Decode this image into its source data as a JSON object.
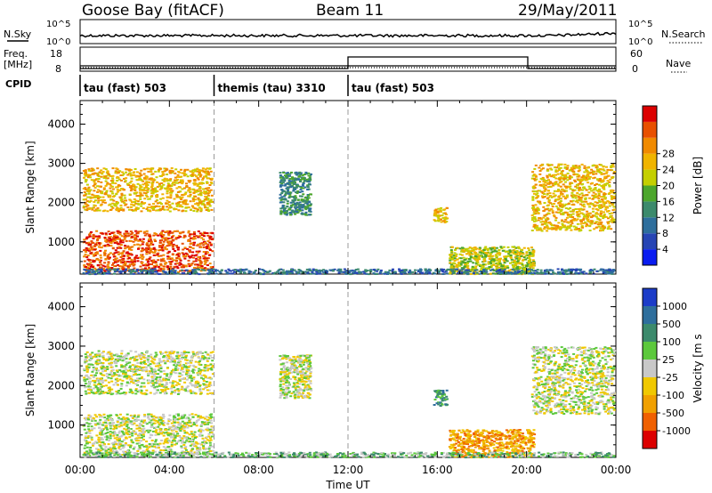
{
  "header": {
    "station": "Goose Bay (fitACF)",
    "beam": "Beam 11",
    "date": "29/May/2011"
  },
  "strip_labels": {
    "nsky": "N.Sky",
    "nsky_tick_top": "10^5",
    "nsky_tick_bot": "10^0",
    "nsearch": "N.Search",
    "nsearch_tick_top": "10^5",
    "nsearch_tick_bot": "10^0",
    "freq_top": "Freq.",
    "freq_bot": "[MHz]",
    "freq_ticks": [
      "18",
      "8"
    ],
    "nave": "Nave",
    "nave_ticks": [
      "60",
      "0"
    ],
    "cpid": "CPID"
  },
  "cpid_segments": [
    {
      "label": "tau (fast) 503",
      "start_hour": 0
    },
    {
      "label": "themis (tau) 3310",
      "start_hour": 6
    },
    {
      "label": "tau (fast) 503",
      "start_hour": 12
    }
  ],
  "chart_data": [
    {
      "type": "heatmap",
      "name": "power-panel",
      "ylabel": "Slant Range [km]",
      "xlim_hours": [
        0,
        24
      ],
      "ylim": [
        180,
        4600
      ],
      "yticks": [
        1000,
        2000,
        3000,
        4000
      ],
      "vlines_hours": [
        6,
        12
      ],
      "colorbar": {
        "label": "Power [dB]",
        "ticks": [
          "4",
          "8",
          "12",
          "16",
          "20",
          "24",
          "28"
        ],
        "colors": [
          "#0a1cf0",
          "#2745b4",
          "#2e6e9c",
          "#3c8a6c",
          "#4ca62c",
          "#c4cf00",
          "#f0b400",
          "#f08a00",
          "#e85000",
          "#dc0000"
        ]
      },
      "regions": [
        {
          "x": [
            0.1,
            5.9
          ],
          "y": [
            1800,
            2900
          ],
          "level": 6
        },
        {
          "x": [
            0.1,
            5.9
          ],
          "y": [
            250,
            1300
          ],
          "level": 8
        },
        {
          "x": [
            8.9,
            10.3
          ],
          "y": [
            1700,
            2800
          ],
          "level": 3
        },
        {
          "x": [
            15.8,
            16.4
          ],
          "y": [
            1500,
            1900
          ],
          "level": 6
        },
        {
          "x": [
            16.5,
            20.3
          ],
          "y": [
            200,
            900
          ],
          "level": 5
        },
        {
          "x": [
            20.2,
            23.9
          ],
          "y": [
            1300,
            3000
          ],
          "level": 6
        },
        {
          "x": [
            0.1,
            23.9
          ],
          "y": [
            200,
            330
          ],
          "level": 2
        }
      ]
    },
    {
      "type": "heatmap",
      "name": "velocity-panel",
      "ylabel": "Slant Range [km]",
      "xlabel": "Time UT",
      "xlim_hours": [
        0,
        24
      ],
      "ylim": [
        180,
        4600
      ],
      "yticks": [
        1000,
        2000,
        3000,
        4000
      ],
      "xticks": [
        "00:00",
        "04:00",
        "08:00",
        "12:00",
        "16:00",
        "20:00",
        "00:00"
      ],
      "vlines_hours": [
        6,
        12
      ],
      "colorbar": {
        "label": "Velocity [m s",
        "ticks": [
          "-1000",
          "-500",
          "-100",
          "-25",
          "25",
          "100",
          "500",
          "1000"
        ],
        "colors": [
          "#dc0000",
          "#f06000",
          "#f0a000",
          "#f0c800",
          "#c8c8c8",
          "#5cc83c",
          "#3c8a6c",
          "#2e6e9c",
          "#1c3cc8"
        ]
      },
      "regions": [
        {
          "x": [
            0.1,
            5.9
          ],
          "y": [
            1800,
            2900
          ],
          "level": 4
        },
        {
          "x": [
            0.1,
            5.9
          ],
          "y": [
            250,
            1300
          ],
          "level": 4
        },
        {
          "x": [
            8.9,
            10.3
          ],
          "y": [
            1700,
            2800
          ],
          "level": 4
        },
        {
          "x": [
            15.8,
            16.4
          ],
          "y": [
            1500,
            1900
          ],
          "level": 6
        },
        {
          "x": [
            16.5,
            20.3
          ],
          "y": [
            200,
            900
          ],
          "level": 2
        },
        {
          "x": [
            20.2,
            23.9
          ],
          "y": [
            1300,
            3000
          ],
          "level": 4
        },
        {
          "x": [
            0.1,
            23.9
          ],
          "y": [
            200,
            330
          ],
          "level": 5
        }
      ]
    }
  ]
}
